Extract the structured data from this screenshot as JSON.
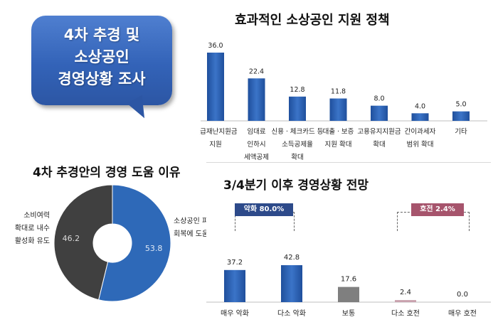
{
  "bubble": {
    "lines": [
      "4차 추경 및",
      "소상공인",
      "경영상황 조사"
    ]
  },
  "colors": {
    "bubble": "#3363b8",
    "bar_blue": "#2e5fae",
    "bar_gray": "#7f7f7f",
    "bar_pink": "#c9a2ae",
    "donut_blue": "#2e69b8",
    "donut_dark": "#404040",
    "legend_negative": "#2d4a8a",
    "legend_positive": "#a6546c"
  },
  "chart_data": [
    {
      "type": "bar",
      "title": "효과적인 소상공인 지원 정책",
      "categories": [
        [
          "긴급재난지원금",
          "지원"
        ],
        [
          "임대료",
          "인하시",
          "세액공제"
        ],
        [
          "신용ㆍ체크카드 등",
          "소득공제율",
          "확대"
        ],
        [
          "대출ㆍ보증",
          "지원 확대"
        ],
        [
          "고용유지지원금",
          "확대"
        ],
        [
          "간이과세자",
          "범위 확대"
        ],
        [
          "기타"
        ]
      ],
      "values": [
        36.0,
        22.4,
        12.8,
        11.8,
        8.0,
        4.0,
        5.0
      ],
      "value_labels": [
        "36.0",
        "22.4",
        "12.8",
        "11.8",
        "8.0",
        "4.0",
        "5.0"
      ],
      "ylim": [
        0,
        36.0
      ]
    },
    {
      "type": "pie",
      "title": "4차 추경안의 경영 도움 이유",
      "slices": [
        {
          "label": [
            "소상공인 피해",
            "회복에 도움"
          ],
          "value": 53.8,
          "value_label": "53.8"
        },
        {
          "label": [
            "소비여력",
            "확대로 내수",
            "활성화 유도"
          ],
          "value": 46.2,
          "value_label": "46.2"
        }
      ]
    },
    {
      "type": "bar",
      "title": "3/4분기 이후 경영상황 전망",
      "categories": [
        "매우 악화",
        "다소 악화",
        "보통",
        "다소 호전",
        "매우 호전"
      ],
      "values": [
        37.2,
        42.8,
        17.6,
        2.4,
        0.0
      ],
      "value_labels": [
        "37.2",
        "42.8",
        "17.6",
        "2.4",
        "0.0"
      ],
      "ylim": [
        0,
        42.8
      ],
      "annotations": [
        {
          "label": "악화  80.0%",
          "tone": "negative"
        },
        {
          "label": "호전  2.4%",
          "tone": "positive"
        }
      ]
    }
  ]
}
